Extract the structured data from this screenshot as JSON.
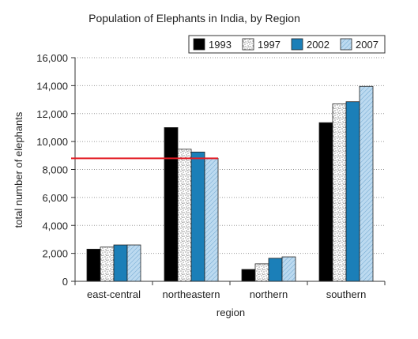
{
  "chart_data": {
    "type": "bar",
    "title": "Population of Elephants in India, by Region",
    "xlabel": "region",
    "ylabel": "total number of elephants",
    "categories": [
      "east-central",
      "northeastern",
      "northern",
      "southern"
    ],
    "series": [
      {
        "name": "1993",
        "values": [
          2300,
          11000,
          850,
          11350
        ],
        "color": "#000000",
        "pattern": "solid"
      },
      {
        "name": "1997",
        "values": [
          2450,
          9450,
          1250,
          12700
        ],
        "color": "#ffffff",
        "pattern": "speckle"
      },
      {
        "name": "2002",
        "values": [
          2600,
          9250,
          1650,
          12850
        ],
        "color": "#1b7fb8",
        "pattern": "solid"
      },
      {
        "name": "2007",
        "values": [
          2600,
          8800,
          1750,
          13950
        ],
        "color": "#bcdaf0",
        "pattern": "hatch"
      }
    ],
    "ylim": [
      0,
      16000
    ],
    "yticks": [
      0,
      2000,
      4000,
      6000,
      8000,
      10000,
      12000,
      14000,
      16000
    ],
    "ytick_labels": [
      "0",
      "2,000",
      "4,000",
      "6,000",
      "8,000",
      "10,000",
      "12,000",
      "14,000",
      "16,000"
    ],
    "grid": "horizontal dotted",
    "legend_position": "top-right",
    "annotation": {
      "type": "horizontal-line",
      "y": 8800,
      "x_start": "east-central",
      "x_end": "northeastern",
      "color": "#e31b23"
    }
  }
}
